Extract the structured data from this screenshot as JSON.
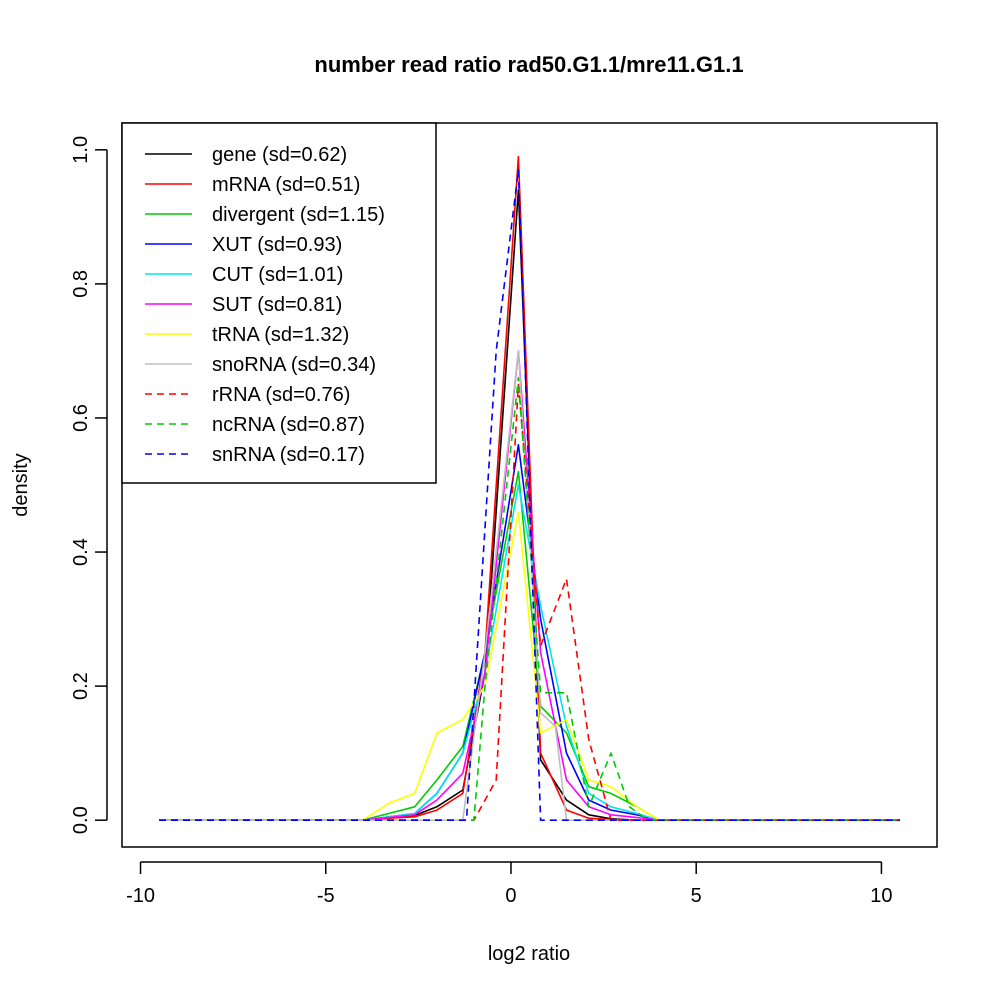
{
  "chart_data": {
    "type": "line",
    "title": "number read ratio rad50.G1.1/mre11.G1.1",
    "xlabel": "log2 ratio",
    "ylabel": "density",
    "xlim": [
      -10.5,
      11.5
    ],
    "ylim": [
      -0.04,
      1.04
    ],
    "xticks": [
      -10,
      -5,
      0,
      5,
      10
    ],
    "xtick_labels": [
      "-10",
      "-5",
      "0",
      "5",
      "10"
    ],
    "yticks": [
      0.0,
      0.2,
      0.4,
      0.6,
      0.8,
      1.0
    ],
    "ytick_labels": [
      "0.0",
      "0.2",
      "0.4",
      "0.6",
      "0.8",
      "1.0"
    ],
    "grid": false,
    "legend_position": "top-left",
    "series": [
      {
        "name": "gene (sd=0.62)",
        "color": "#000000",
        "dash": "solid",
        "x": [
          -9.5,
          -4.0,
          -3.3,
          -2.6,
          -2.0,
          -1.3,
          -0.7,
          0.2,
          0.8,
          1.5,
          2.1,
          2.7,
          3.4,
          4.0,
          10.5
        ],
        "y": [
          0,
          0,
          0.004,
          0.007,
          0.02,
          0.045,
          0.22,
          0.94,
          0.09,
          0.03,
          0.008,
          0.002,
          0,
          0,
          0
        ]
      },
      {
        "name": "mRNA (sd=0.51)",
        "color": "#ff0000",
        "dash": "solid",
        "x": [
          -9.5,
          -4.0,
          -3.3,
          -2.6,
          -2.0,
          -1.3,
          -0.7,
          0.2,
          0.8,
          1.5,
          2.1,
          2.7,
          3.4,
          4.0,
          10.5
        ],
        "y": [
          0,
          0,
          0.003,
          0.005,
          0.015,
          0.04,
          0.25,
          0.99,
          0.1,
          0.015,
          0.003,
          0.001,
          0,
          0,
          0
        ]
      },
      {
        "name": "divergent (sd=1.15)",
        "color": "#00cc00",
        "dash": "solid",
        "x": [
          -9.5,
          -4.0,
          -3.3,
          -2.6,
          -2.0,
          -1.3,
          -0.7,
          0.2,
          0.8,
          1.5,
          2.1,
          2.7,
          3.4,
          4.0,
          10.5
        ],
        "y": [
          0,
          0,
          0.01,
          0.02,
          0.06,
          0.11,
          0.25,
          0.52,
          0.17,
          0.13,
          0.05,
          0.04,
          0.02,
          0,
          0
        ]
      },
      {
        "name": "XUT (sd=0.93)",
        "color": "#0000ff",
        "dash": "solid",
        "x": [
          -9.5,
          -4.0,
          -3.3,
          -2.6,
          -2.0,
          -1.3,
          -0.7,
          0.2,
          0.8,
          1.5,
          2.1,
          2.7,
          3.4,
          4.0,
          10.5
        ],
        "y": [
          0,
          0,
          0.005,
          0.01,
          0.04,
          0.1,
          0.25,
          0.56,
          0.3,
          0.1,
          0.03,
          0.015,
          0.008,
          0,
          0
        ]
      },
      {
        "name": "CUT (sd=1.01)",
        "color": "#00e5ee",
        "dash": "solid",
        "x": [
          -9.5,
          -4.0,
          -3.3,
          -2.6,
          -2.0,
          -1.3,
          -0.7,
          0.2,
          0.8,
          1.5,
          2.1,
          2.7,
          3.4,
          4.0,
          10.5
        ],
        "y": [
          0,
          0,
          0.005,
          0.01,
          0.04,
          0.1,
          0.22,
          0.5,
          0.32,
          0.14,
          0.04,
          0.02,
          0.01,
          0,
          0
        ]
      },
      {
        "name": "SUT (sd=0.81)",
        "color": "#ff00ff",
        "dash": "solid",
        "x": [
          -9.5,
          -4.0,
          -3.3,
          -2.6,
          -2.0,
          -1.3,
          -0.7,
          0.2,
          0.8,
          1.5,
          2.1,
          2.7,
          3.4,
          4.0,
          10.5
        ],
        "y": [
          0,
          0,
          0.004,
          0.008,
          0.03,
          0.07,
          0.22,
          0.7,
          0.25,
          0.06,
          0.02,
          0.008,
          0.004,
          0,
          0
        ]
      },
      {
        "name": "tRNA (sd=1.32)",
        "color": "#ffff00",
        "dash": "solid",
        "x": [
          -9.5,
          -4.0,
          -3.3,
          -2.6,
          -2.0,
          -1.3,
          -0.7,
          0.2,
          0.8,
          1.5,
          2.1,
          2.7,
          3.4,
          4.0,
          10.5
        ],
        "y": [
          0,
          0,
          0.025,
          0.04,
          0.13,
          0.15,
          0.2,
          0.46,
          0.13,
          0.15,
          0.06,
          0.05,
          0.02,
          0,
          0
        ]
      },
      {
        "name": "snoRNA (sd=0.34)",
        "color": "#bebebe",
        "dash": "solid",
        "x": [
          -9.5,
          -1.3,
          -0.7,
          0.2,
          0.8,
          1.2,
          1.5,
          2.1,
          10.5
        ],
        "y": [
          0,
          0,
          0.25,
          0.7,
          0.16,
          0.14,
          0,
          0,
          0
        ]
      },
      {
        "name": "rRNA (sd=0.76)",
        "color": "#ff0000",
        "dash": "dashed",
        "x": [
          -9.5,
          -1.0,
          -0.4,
          0.2,
          0.8,
          1.5,
          2.1,
          2.7,
          3.2,
          10.5
        ],
        "y": [
          0,
          0,
          0.06,
          0.65,
          0.26,
          0.36,
          0.12,
          0,
          0,
          0
        ]
      },
      {
        "name": "ncRNA (sd=0.87)",
        "color": "#00cc00",
        "dash": "dashed",
        "x": [
          -9.5,
          -1.0,
          -0.7,
          0.2,
          0.8,
          1.5,
          2.1,
          2.7,
          3.2,
          3.7,
          10.5
        ],
        "y": [
          0,
          0,
          0.2,
          0.66,
          0.19,
          0.19,
          0.02,
          0.1,
          0.02,
          0,
          0
        ]
      },
      {
        "name": "snRNA (sd=0.17)",
        "color": "#0000ff",
        "dash": "dashed",
        "x": [
          -9.5,
          -1.2,
          -0.4,
          0.2,
          0.8,
          0.9,
          10.5
        ],
        "y": [
          0,
          0,
          0.7,
          0.97,
          0.0,
          0,
          0
        ]
      }
    ]
  }
}
